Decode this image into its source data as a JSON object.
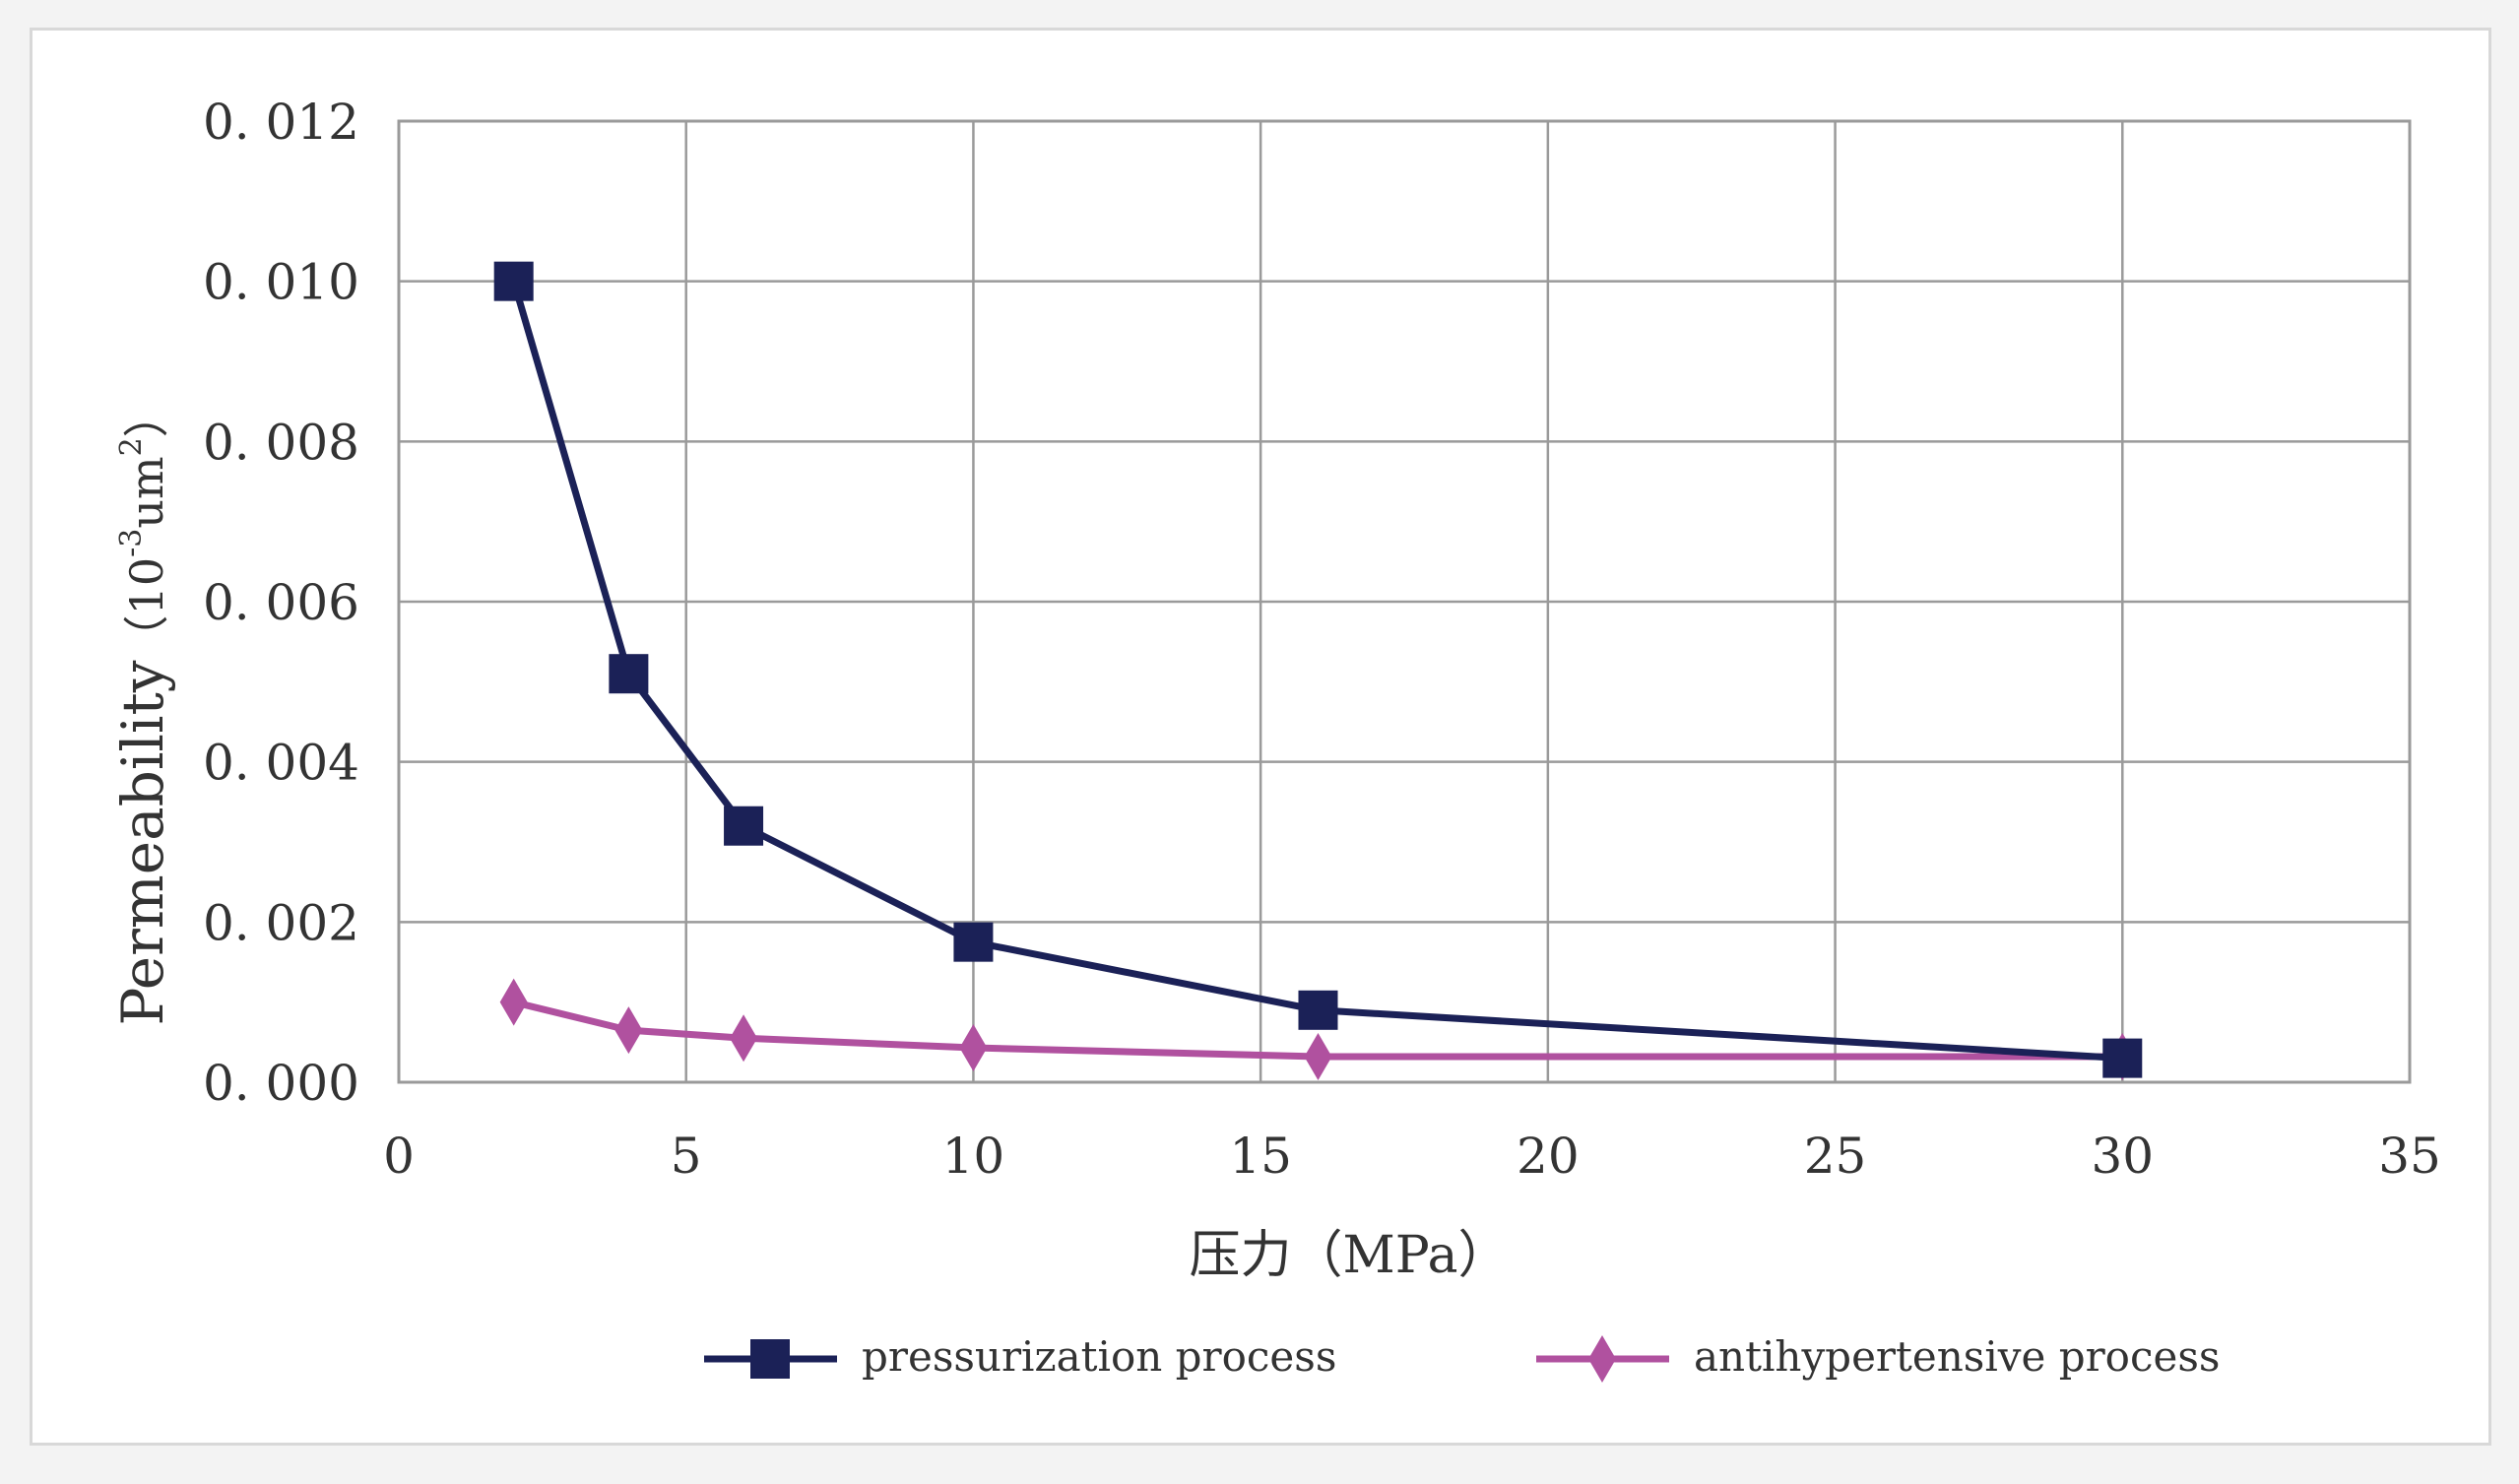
{
  "chart_data": {
    "type": "line",
    "title": "",
    "xlabel": "压力（MPa）",
    "ylabel": "Permeability（10⁻³um²）",
    "ylabel_main": "Permeability",
    "ylabel_unit": "（10",
    "ylabel_exp": "-3",
    "ylabel_um": "um",
    "ylabel_exp2": "2",
    "ylabel_close": "）",
    "xlim": [
      0,
      35
    ],
    "ylim": [
      0,
      0.012
    ],
    "xticks": [
      0,
      5,
      10,
      15,
      20,
      25,
      30,
      35
    ],
    "xtick_labels": [
      "0",
      "5",
      "10",
      "15",
      "20",
      "25",
      "30",
      "35"
    ],
    "yticks": [
      0,
      0.002,
      0.004,
      0.006,
      0.008,
      0.01,
      0.012
    ],
    "ytick_labels": [
      "0. 000",
      "0. 002",
      "0. 004",
      "0. 006",
      "0. 008",
      "0. 010",
      "0. 012"
    ],
    "grid": true,
    "legend_position": "bottom",
    "series": [
      {
        "name": "pressurization process",
        "color": "#1b2157",
        "marker": "square",
        "x": [
          2,
          4,
          6,
          10,
          16,
          30
        ],
        "y": [
          0.01,
          0.0051,
          0.0032,
          0.00175,
          0.0009,
          0.0003
        ]
      },
      {
        "name": "antihypertensive process",
        "color": "#b0519f",
        "marker": "diamond",
        "x": [
          2,
          4,
          6,
          10,
          16,
          30
        ],
        "y": [
          0.001,
          0.00065,
          0.00055,
          0.00043,
          0.00032,
          0.00032
        ]
      }
    ]
  }
}
